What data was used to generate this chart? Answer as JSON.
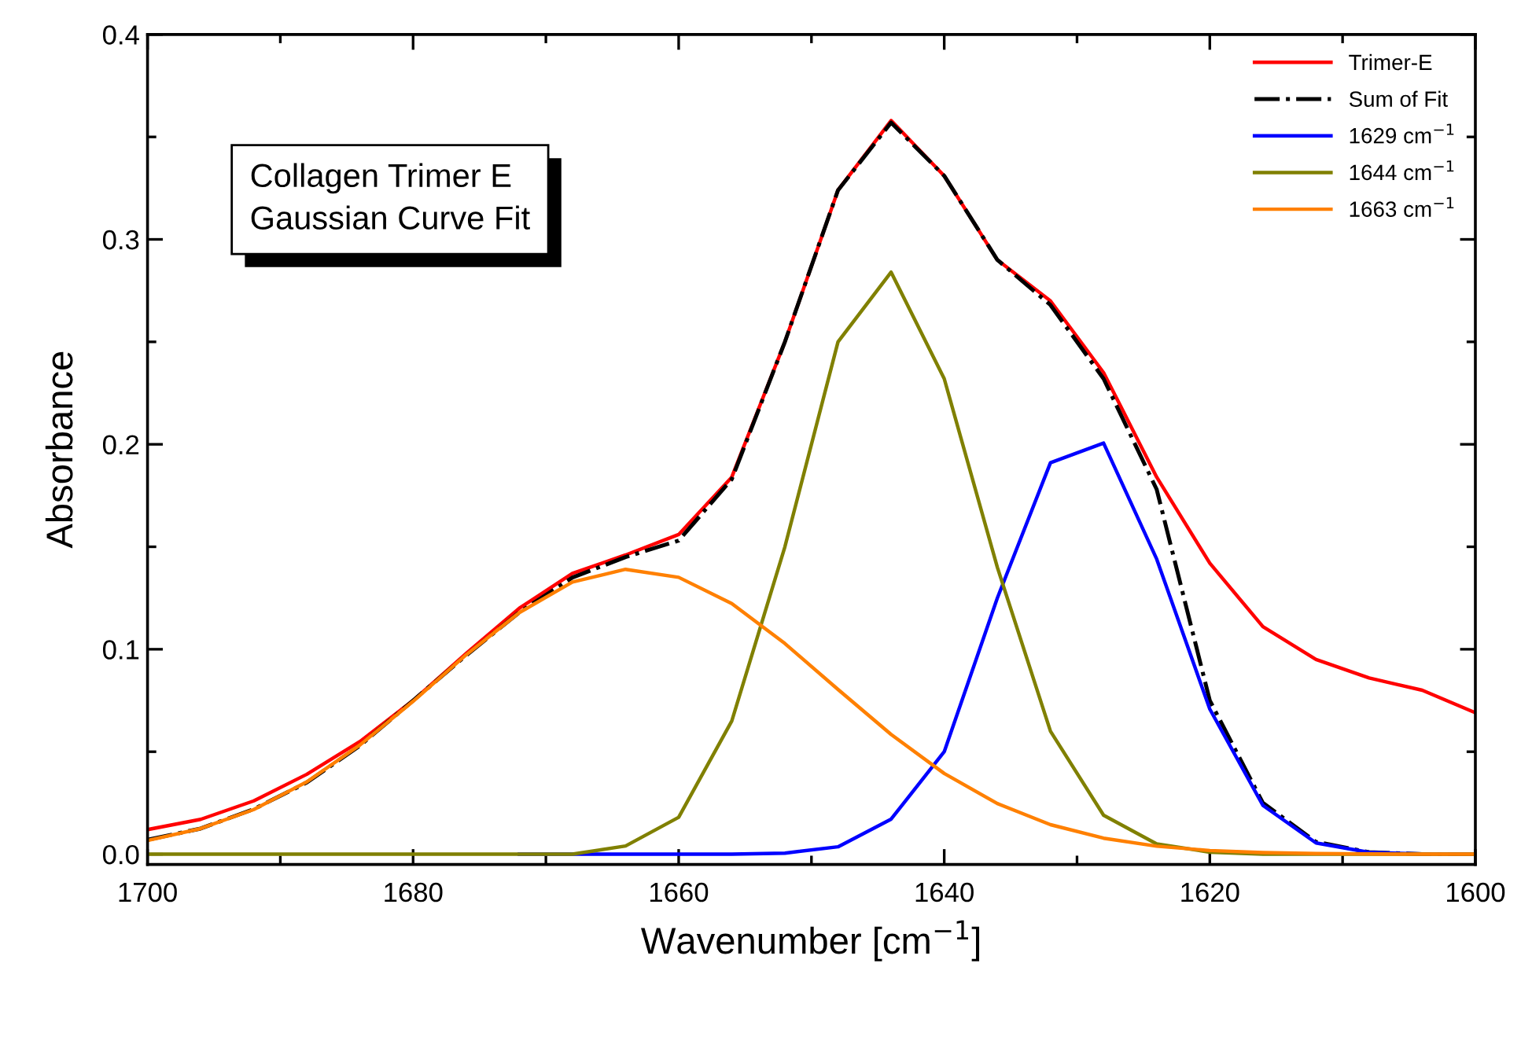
{
  "chart_data": {
    "type": "line",
    "xlabel": "Wavenumber [cm$^{−1}$]",
    "ylabel": "Absorbance",
    "x": [
      1700,
      1696,
      1692,
      1688,
      1684,
      1680,
      1676,
      1672,
      1668,
      1664,
      1660,
      1656,
      1652,
      1648,
      1644,
      1640,
      1636,
      1632,
      1628,
      1624,
      1620,
      1616,
      1612,
      1608,
      1604,
      1600
    ],
    "series": [
      {
        "name": "Trimer-E",
        "color": "#ff0000",
        "line_style": "solid",
        "values": [
          0.012,
          0.017,
          0.026,
          0.039,
          0.055,
          0.075,
          0.098,
          0.12,
          0.137,
          0.146,
          0.156,
          0.184,
          0.25,
          0.324,
          0.358,
          0.331,
          0.29,
          0.27,
          0.235,
          0.184,
          0.142,
          0.111,
          0.095,
          0.086,
          0.08,
          0.069
        ]
      },
      {
        "name": "Sum of Fit",
        "color": "#000000",
        "line_style": "dashdot",
        "values": [
          0.007,
          0.0125,
          0.022,
          0.035,
          0.053,
          0.075,
          0.097,
          0.118,
          0.135,
          0.145,
          0.153,
          0.183,
          0.25,
          0.324,
          0.357,
          0.331,
          0.29,
          0.268,
          0.232,
          0.178,
          0.075,
          0.025,
          0.006,
          0.001,
          0.0,
          0.0
        ]
      },
      {
        "name": "1629 cm$^{−1}$",
        "color": "#0000ff",
        "line_style": "solid",
        "values": [
          null,
          null,
          null,
          null,
          null,
          null,
          null,
          0,
          0,
          0,
          0,
          0,
          0.0005,
          0.0036,
          0.0171,
          0.05,
          0.125,
          0.191,
          0.2006,
          0.144,
          0.0708,
          0.0238,
          0.0055,
          0.0009,
          0.0001,
          0
        ]
      },
      {
        "name": "1644 cm$^{−1}$",
        "color": "#808000",
        "line_style": "solid",
        "values": [
          0,
          0,
          0,
          0,
          0,
          0,
          0,
          0,
          0,
          0.004,
          0.018,
          0.065,
          0.15,
          0.25,
          0.284,
          0.232,
          0.14,
          0.06,
          0.019,
          0.005,
          0.001,
          0,
          0,
          0,
          0,
          0
        ]
      },
      {
        "name": "1663 cm$^{−1}$",
        "color": "#ff8000",
        "line_style": "solid",
        "values": [
          0.0067,
          0.0125,
          0.0218,
          0.0353,
          0.0533,
          0.0746,
          0.0973,
          0.1179,
          0.1328,
          0.139,
          0.1351,
          0.1223,
          0.1028,
          0.0804,
          0.0584,
          0.0394,
          0.0247,
          0.0144,
          0.0078,
          0.0039,
          0.0018,
          0.0008,
          0.0003,
          0.0001,
          0,
          0
        ]
      }
    ],
    "xlim": [
      1700,
      1600
    ],
    "xticks": [
      1700,
      {
        "value": 1690,
        "label": null
      },
      1680,
      {
        "value": 1670,
        "label": null
      },
      1660,
      {
        "value": 1650,
        "label": null
      },
      1640,
      {
        "value": 1630,
        "label": null
      },
      1620,
      {
        "value": 1610,
        "label": null
      },
      1600
    ],
    "ylim": [
      -0.005,
      0.4
    ],
    "yticks": [
      {
        "value": 0,
        "label": "0.0"
      },
      {
        "value": 0.05,
        "label": null
      },
      0.1,
      {
        "value": 0.15,
        "label": null
      },
      0.2,
      {
        "value": 0.25,
        "label": null
      },
      0.3,
      {
        "value": 0.35,
        "label": null
      },
      0.4
    ],
    "grid": false,
    "legend": "top right",
    "annotations": [
      "Collagen Trimer E\nGaussian Curve Fit"
    ]
  }
}
